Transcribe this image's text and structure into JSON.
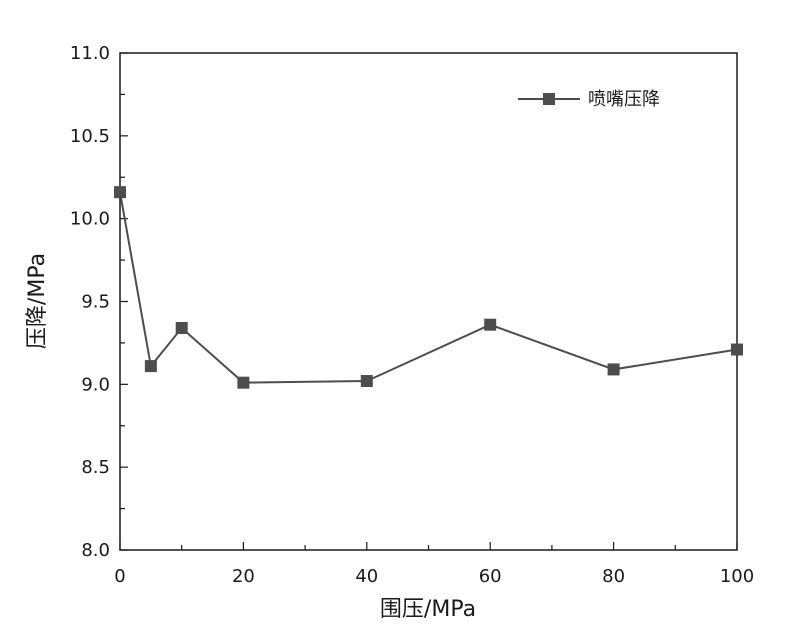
{
  "chart_data": {
    "type": "line",
    "xlabel": "围压/MPa",
    "ylabel": "压降/MPa",
    "xlim": [
      0,
      100
    ],
    "ylim": [
      8.0,
      11.0
    ],
    "xticks": [
      0,
      20,
      40,
      60,
      80,
      100
    ],
    "yticks": [
      "8.0",
      "8.5",
      "9.0",
      "9.5",
      "10.0",
      "10.5",
      "11.0"
    ],
    "grid": false,
    "legend_position": "top-right",
    "series": [
      {
        "name": "喷嘴压降",
        "color": "#4d4d4d",
        "marker": "square",
        "x": [
          0,
          5,
          10,
          20,
          40,
          60,
          80,
          100
        ],
        "values": [
          10.16,
          9.11,
          9.34,
          9.01,
          9.02,
          9.36,
          9.09,
          9.21
        ]
      }
    ]
  }
}
